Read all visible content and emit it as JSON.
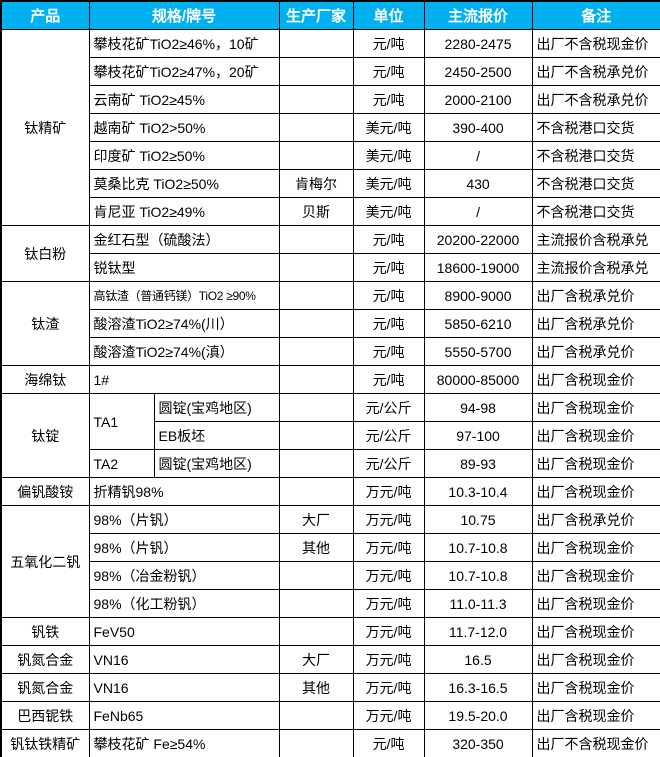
{
  "colors": {
    "header_bg": "#00B0F0",
    "header_text": "#FFFFFF",
    "border": "#000000",
    "body_text": "#000000"
  },
  "header": {
    "columns": [
      "产品",
      "规格/牌号",
      "生产厂家",
      "单位",
      "主流报价",
      "备注"
    ]
  },
  "rows": [
    {
      "product": "钛精矿",
      "product_span": 7,
      "spec": "攀枝花矿TiO2≥46%，10矿",
      "maker": "",
      "unit": "元/吨",
      "price": "2280-2475",
      "note": "出厂不含税现金价"
    },
    {
      "spec": "攀枝花矿TiO2≥47%，20矿",
      "maker": "",
      "unit": "元/吨",
      "price": "2450-2500",
      "note": "出厂不含税承兑价"
    },
    {
      "spec": "云南矿 TiO2≥45%",
      "maker": "",
      "unit": "元/吨",
      "price": "2000-2100",
      "note": "出厂不含税承兑价"
    },
    {
      "spec": "越南矿 TiO2>50%",
      "maker": "",
      "unit": "美元/吨",
      "price": "390-400",
      "note": "不含税港口交货"
    },
    {
      "spec": "印度矿 TiO2≥50%",
      "maker": "",
      "unit": "美元/吨",
      "price": "/",
      "note": "不含税港口交货"
    },
    {
      "spec": "莫桑比克 TiO2≥50%",
      "maker": "肯梅尔",
      "unit": "美元/吨",
      "price": "430",
      "note": "不含税港口交货"
    },
    {
      "spec": "肯尼亚 TiO2≥49%",
      "maker": "贝斯",
      "unit": "美元/吨",
      "price": "/",
      "note": "不含税港口交货"
    },
    {
      "product": "钛白粉",
      "product_span": 2,
      "spec": "金红石型（硫酸法）",
      "maker": "",
      "unit": "元/吨",
      "price": "20200-22000",
      "note": "主流报价含税承兑"
    },
    {
      "spec": "锐钛型",
      "maker": "",
      "unit": "元/吨",
      "price": "18600-19000",
      "note": "主流报价含税承兑"
    },
    {
      "product": "钛渣",
      "product_span": 3,
      "spec": "高钛渣（普通钙镁）TiO2 ≥90%",
      "spec_small": true,
      "maker": "",
      "unit": "元/吨",
      "price": "8900-9000",
      "note": "出厂含税承兑价"
    },
    {
      "spec": "酸溶渣TiO2≥74%(川）",
      "maker": "",
      "unit": "元/吨",
      "price": "5850-6210",
      "note": "出厂含税承兑价"
    },
    {
      "spec": "酸溶渣TiO2≥74%(滇）",
      "maker": "",
      "unit": "元/吨",
      "price": "5550-5700",
      "note": "出厂含税承兑价"
    },
    {
      "product": "海绵钛",
      "product_span": 1,
      "spec": "1#",
      "maker": "",
      "unit": "元/吨",
      "price": "80000-85000",
      "note": "出厂含税现金价"
    },
    {
      "product": "钛锭",
      "product_span": 3,
      "spec_a": "TA1",
      "spec_a_span": 2,
      "spec_b": "圆锭(宝鸡地区)",
      "maker": "",
      "unit": "元/公斤",
      "price": "94-98",
      "note": "出厂含税现金价"
    },
    {
      "spec_b": "EB板坯",
      "maker": "",
      "unit": "元/公斤",
      "price": "97-100",
      "note": "出厂含税现金价"
    },
    {
      "spec_a": "TA2",
      "spec_a_span": 1,
      "spec_b": "圆锭(宝鸡地区)",
      "maker": "",
      "unit": "元/公斤",
      "price": "89-93",
      "note": "出厂含税现金价"
    },
    {
      "product": "偏钒酸铵",
      "product_span": 1,
      "spec": "折精钒98%",
      "maker": "",
      "unit": "万元/吨",
      "price": "10.3-10.4",
      "note": "出厂含税现金价"
    },
    {
      "product": "五氧化二钒",
      "product_span": 4,
      "spec": "98%（片钒）",
      "maker": "大厂",
      "unit": "万元/吨",
      "price": "10.75",
      "note": "出厂含税承兑价"
    },
    {
      "spec": "98%（片钒）",
      "maker": "其他",
      "unit": "万元/吨",
      "price": "10.7-10.8",
      "note": "出厂含税现金价"
    },
    {
      "spec": "98%（冶金粉钒）",
      "maker": "",
      "unit": "万元/吨",
      "price": "10.7-10.8",
      "note": "出厂含税现金价"
    },
    {
      "spec": "98%（化工粉钒）",
      "maker": "",
      "unit": "万元/吨",
      "price": "11.0-11.3",
      "note": "出厂含税现金价"
    },
    {
      "product": "钒铁",
      "product_span": 1,
      "spec": "FeV50",
      "maker": "",
      "unit": "万元/吨",
      "price": "11.7-12.0",
      "note": "出厂含税现金价"
    },
    {
      "product": "钒氮合金",
      "product_span": 1,
      "spec": "VN16",
      "maker": "大厂",
      "unit": "万元/吨",
      "price": "16.5",
      "note": "出厂含税现金价"
    },
    {
      "product": "钒氮合金",
      "product_span": 1,
      "spec": "VN16",
      "maker": "其他",
      "unit": "万元/吨",
      "price": "16.3-16.5",
      "note": "出厂含税现金价"
    },
    {
      "product": "巴西铌铁",
      "product_span": 1,
      "spec": "FeNb65",
      "maker": "",
      "unit": "万元/吨",
      "price": "19.5-20.0",
      "note": "出厂含税现金价"
    },
    {
      "product": "钒钛铁精矿",
      "product_span": 1,
      "spec": "攀枝花矿 Fe≥54%",
      "maker": "",
      "unit": "元/吨",
      "price": "320-350",
      "note": "出厂不含税现金价"
    }
  ]
}
